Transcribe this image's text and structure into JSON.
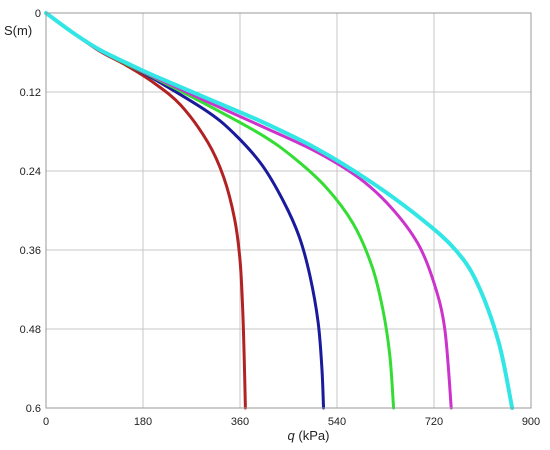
{
  "chart_data": {
    "type": "line",
    "xlabel": "q (kPa)",
    "xlabel_var": "q",
    "xlabel_unit": " (kPa)",
    "ylabel": "S(m)",
    "xlim": [
      0,
      900
    ],
    "ylim": [
      0,
      0.6
    ],
    "y_inverted": true,
    "grid": true,
    "x_ticks": [
      0,
      180,
      360,
      540,
      720,
      900
    ],
    "x_tick_labels": [
      "0",
      "180",
      "360",
      "540",
      "720",
      "900"
    ],
    "y_ticks": [
      0,
      0.12,
      0.24,
      0.36,
      0.48,
      0.6
    ],
    "y_tick_labels": [
      "0",
      "0.12",
      "0.24",
      "0.36",
      "0.48",
      "0.6"
    ],
    "series": [
      {
        "color": "#b22222",
        "points": [
          [
            0,
            0
          ],
          [
            50,
            0.03
          ],
          [
            100,
            0.058
          ],
          [
            150,
            0.08
          ],
          [
            200,
            0.106
          ],
          [
            250,
            0.14
          ],
          [
            300,
            0.196
          ],
          [
            330,
            0.25
          ],
          [
            350,
            0.313
          ],
          [
            360,
            0.375
          ],
          [
            365,
            0.45
          ],
          [
            368,
            0.53
          ],
          [
            370,
            0.6
          ]
        ]
      },
      {
        "color": "#1a1a9c",
        "points": [
          [
            0,
            0
          ],
          [
            50,
            0.03
          ],
          [
            100,
            0.057
          ],
          [
            150,
            0.078
          ],
          [
            200,
            0.1
          ],
          [
            300,
            0.15
          ],
          [
            350,
            0.184
          ],
          [
            400,
            0.23
          ],
          [
            440,
            0.285
          ],
          [
            470,
            0.34
          ],
          [
            490,
            0.4
          ],
          [
            505,
            0.47
          ],
          [
            512,
            0.54
          ],
          [
            515,
            0.6
          ]
        ]
      },
      {
        "color": "#33dd33",
        "points": [
          [
            0,
            0
          ],
          [
            50,
            0.03
          ],
          [
            100,
            0.057
          ],
          [
            150,
            0.078
          ],
          [
            200,
            0.098
          ],
          [
            300,
            0.14
          ],
          [
            400,
            0.185
          ],
          [
            460,
            0.22
          ],
          [
            520,
            0.265
          ],
          [
            570,
            0.32
          ],
          [
            605,
            0.385
          ],
          [
            625,
            0.45
          ],
          [
            638,
            0.52
          ],
          [
            645,
            0.6
          ]
        ]
      },
      {
        "color": "#cc33cc",
        "points": [
          [
            0,
            0
          ],
          [
            50,
            0.03
          ],
          [
            100,
            0.057
          ],
          [
            150,
            0.077
          ],
          [
            200,
            0.097
          ],
          [
            300,
            0.135
          ],
          [
            400,
            0.172
          ],
          [
            500,
            0.21
          ],
          [
            580,
            0.25
          ],
          [
            640,
            0.295
          ],
          [
            690,
            0.35
          ],
          [
            720,
            0.41
          ],
          [
            740,
            0.48
          ],
          [
            752,
            0.6
          ]
        ]
      },
      {
        "color": "#33e6e6",
        "points": [
          [
            0,
            0
          ],
          [
            50,
            0.03
          ],
          [
            100,
            0.056
          ],
          [
            150,
            0.076
          ],
          [
            200,
            0.095
          ],
          [
            300,
            0.13
          ],
          [
            400,
            0.165
          ],
          [
            500,
            0.205
          ],
          [
            600,
            0.255
          ],
          [
            700,
            0.315
          ],
          [
            760,
            0.36
          ],
          [
            800,
            0.41
          ],
          [
            840,
            0.5
          ],
          [
            865,
            0.6
          ]
        ]
      }
    ]
  }
}
